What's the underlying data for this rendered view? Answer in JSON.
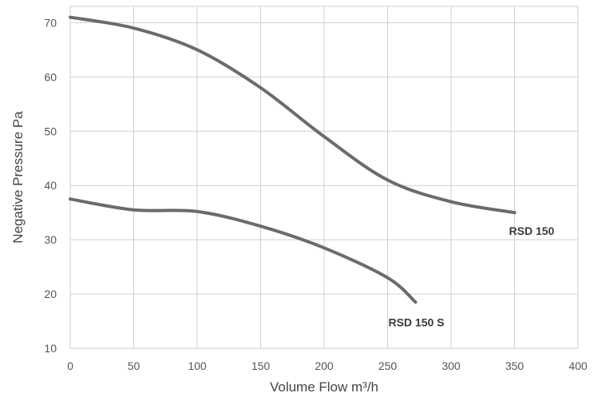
{
  "chart_data": {
    "type": "line",
    "title": "",
    "xlabel": "Volume Flow m³/h",
    "ylabel": "Negative Pressure Pa",
    "xlim": [
      0,
      400
    ],
    "ylim": [
      10,
      73
    ],
    "xticks": [
      0,
      50,
      100,
      150,
      200,
      250,
      300,
      350,
      400
    ],
    "yticks": [
      10,
      20,
      30,
      40,
      50,
      60,
      70
    ],
    "grid": true,
    "legend": "none",
    "colors": {
      "series_line": "#6b6b6b",
      "grid": "#cfcfcf",
      "text": "#444444"
    },
    "series": [
      {
        "name": "RSD 150",
        "x": [
          0,
          50,
          100,
          150,
          200,
          250,
          300,
          350
        ],
        "y": [
          71,
          69,
          65,
          58,
          49,
          41,
          37,
          35
        ]
      },
      {
        "name": "RSD 150 S",
        "x": [
          0,
          50,
          100,
          150,
          200,
          250,
          272
        ],
        "y": [
          37.5,
          35.5,
          35.2,
          32.5,
          28.5,
          23,
          18.5
        ]
      }
    ]
  }
}
